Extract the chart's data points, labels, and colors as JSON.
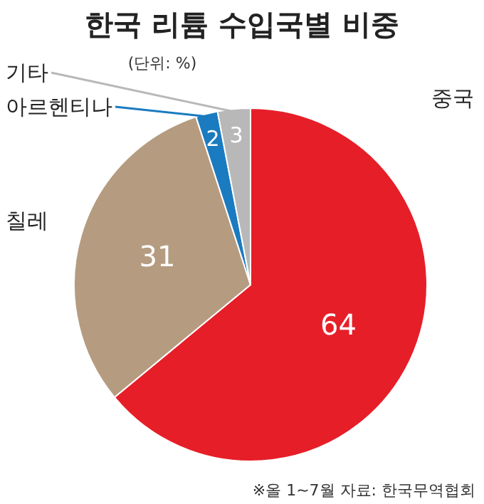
{
  "chart_data": {
    "type": "pie",
    "title": "한국 리튬 수입국별 비중",
    "subtitle": "(단위: %)",
    "categories": [
      "중국",
      "칠레",
      "아르헨티나",
      "기타"
    ],
    "values": [
      64,
      31,
      2,
      3
    ],
    "colors": [
      "#e61e28",
      "#b59c80",
      "#1b7bc0",
      "#b8b8b8"
    ],
    "data_labels": true,
    "annotations": [
      "※올 1~7월 자료: 한국무역협회"
    ]
  }
}
